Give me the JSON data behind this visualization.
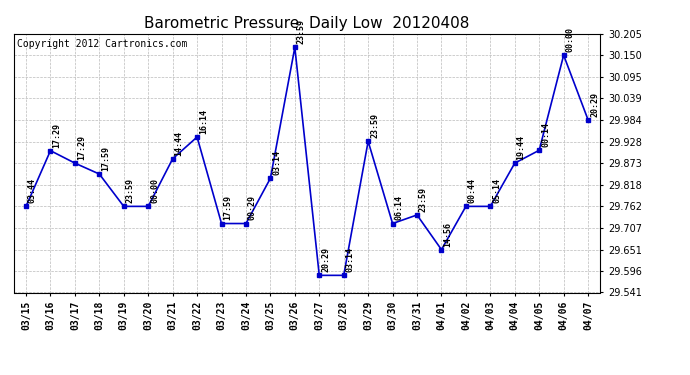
{
  "title": "Barometric Pressure  Daily Low  20120408",
  "copyright": "Copyright 2012 Cartronics.com",
  "x_labels": [
    "03/15",
    "03/16",
    "03/17",
    "03/18",
    "03/19",
    "03/20",
    "03/21",
    "03/22",
    "03/23",
    "03/24",
    "03/25",
    "03/26",
    "03/27",
    "03/28",
    "03/29",
    "03/30",
    "03/31",
    "04/01",
    "04/02",
    "04/03",
    "04/04",
    "04/05",
    "04/06",
    "04/07"
  ],
  "y_values": [
    29.762,
    29.905,
    29.873,
    29.845,
    29.762,
    29.762,
    29.884,
    29.94,
    29.718,
    29.718,
    29.834,
    30.17,
    29.585,
    29.585,
    29.929,
    29.718,
    29.74,
    29.651,
    29.762,
    29.762,
    29.873,
    29.906,
    30.15,
    29.984
  ],
  "time_labels": [
    "03:44",
    "17:29",
    "17:29",
    "17:59",
    "23:59",
    "00:00",
    "14:44",
    "16:14",
    "17:59",
    "00:29",
    "03:14",
    "23:59",
    "20:29",
    "03:14",
    "23:59",
    "06:14",
    "23:59",
    "14:56",
    "00:44",
    "05:14",
    "19:44",
    "00:14",
    "00:00",
    "20:29"
  ],
  "line_color": "#0000CC",
  "marker_color": "#0000CC",
  "background_color": "#FFFFFF",
  "grid_color": "#BBBBBB",
  "ylim_min": 29.541,
  "ylim_max": 30.205,
  "ytick_values": [
    29.541,
    29.596,
    29.651,
    29.707,
    29.762,
    29.818,
    29.873,
    29.928,
    29.984,
    30.039,
    30.095,
    30.15,
    30.205
  ],
  "title_fontsize": 11,
  "copyright_fontsize": 7,
  "tick_fontsize": 7,
  "annotation_fontsize": 6
}
